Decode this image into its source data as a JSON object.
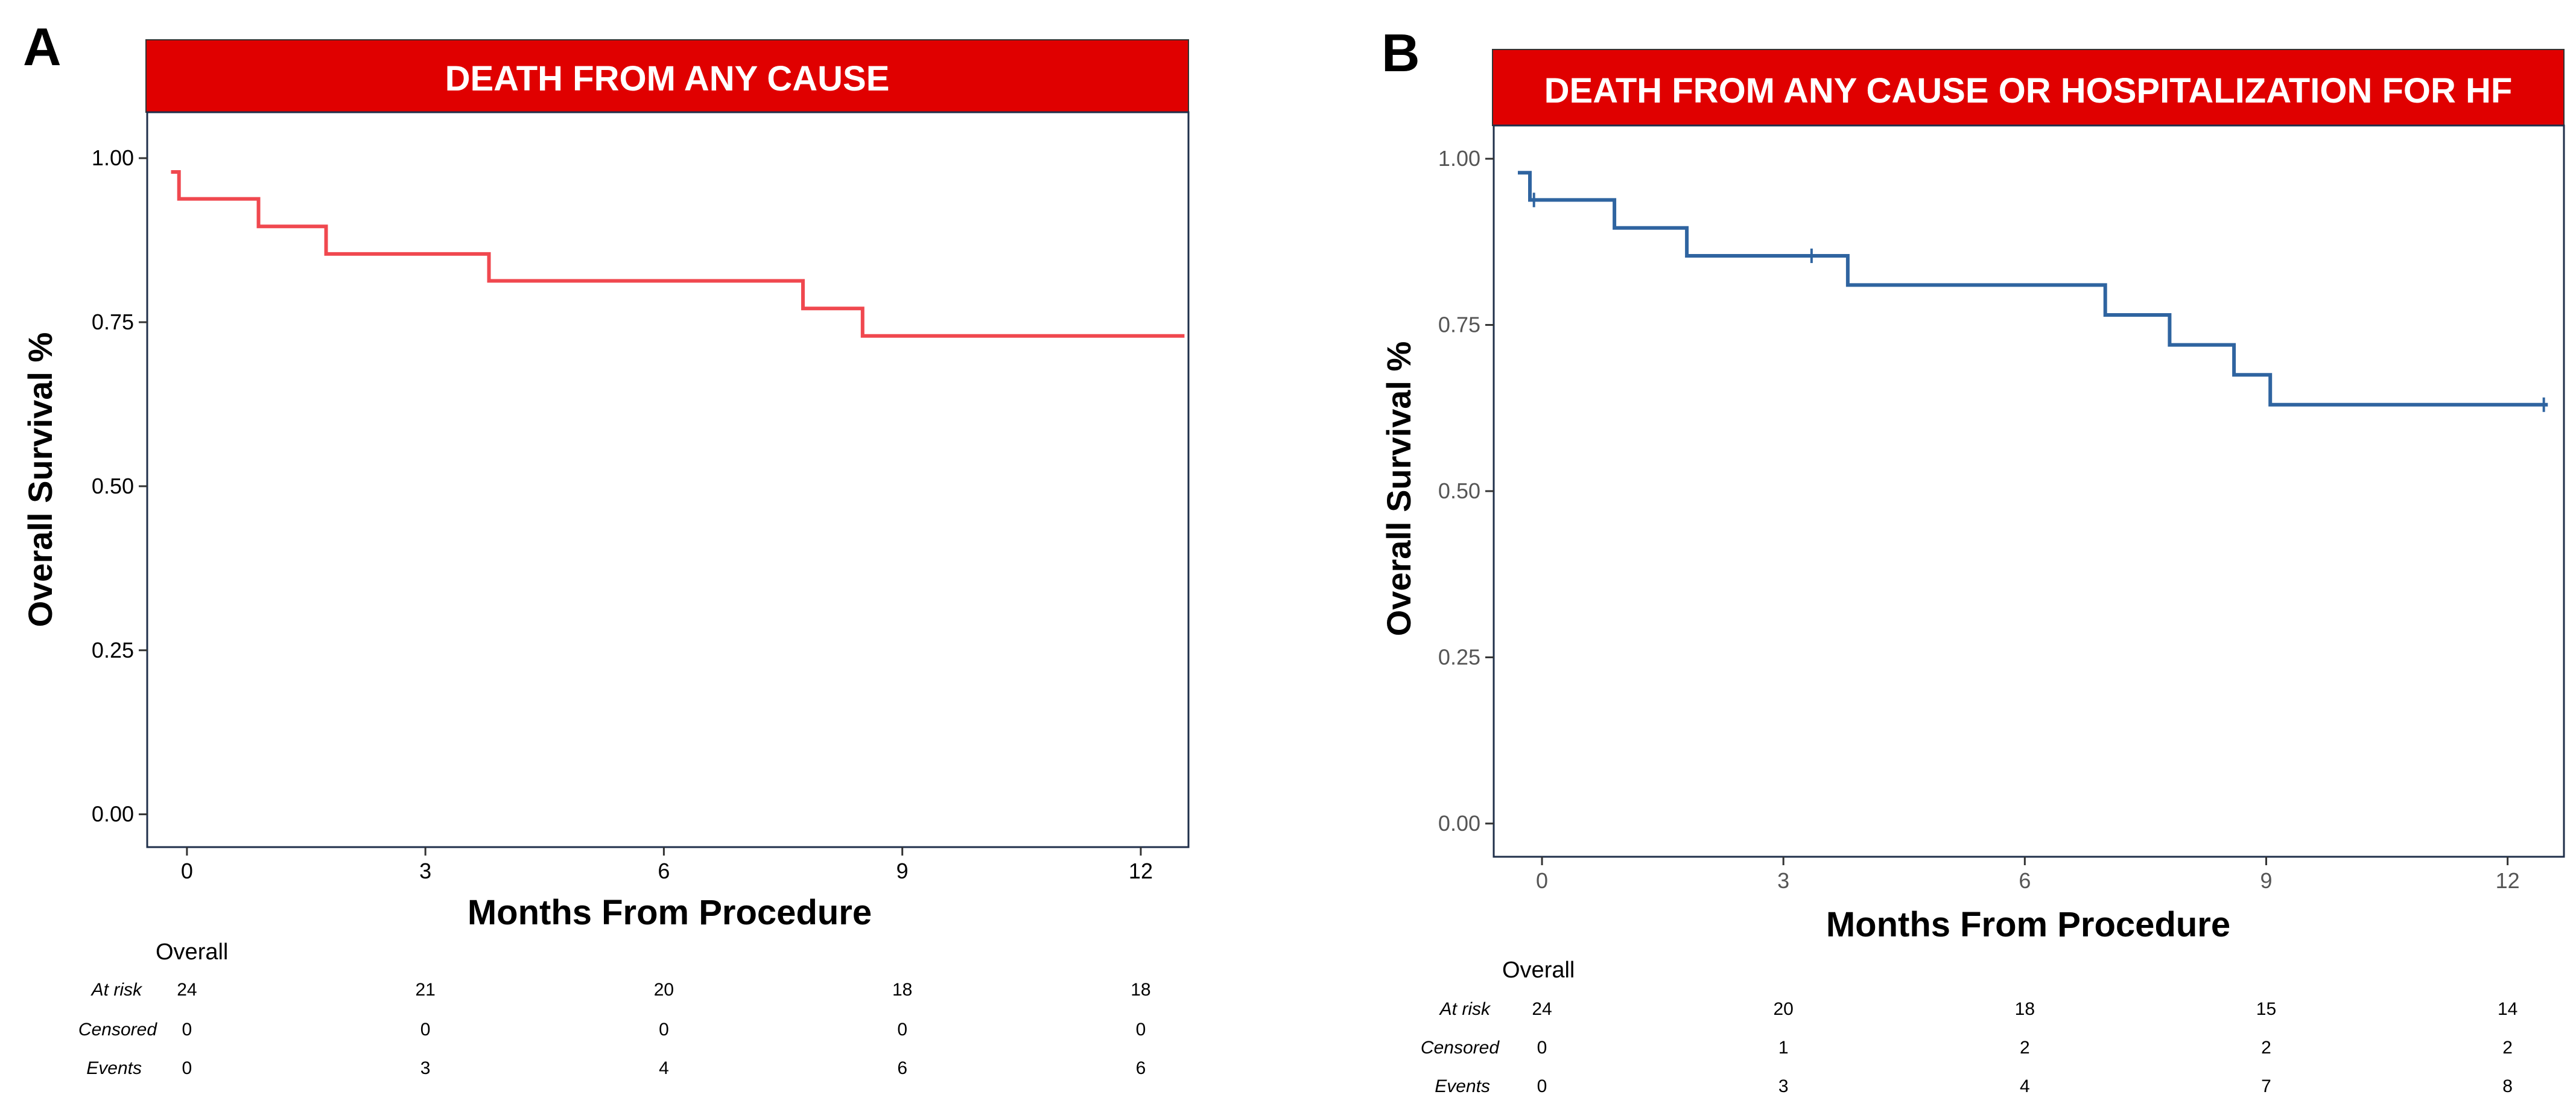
{
  "chart_data": [
    {
      "type": "line",
      "panel_letter": "A",
      "title": "DEATH FROM ANY CAUSE",
      "xlabel": "Months From Procedure",
      "ylabel": "Overall Survival %",
      "xlim": [
        -0.5,
        12.6
      ],
      "ylim": [
        -0.05,
        1.07
      ],
      "x_ticks": [
        0,
        3,
        6,
        9,
        12
      ],
      "y_ticks": [
        0.0,
        0.25,
        0.5,
        0.75,
        1.0
      ],
      "y_tick_labels": [
        "0.00",
        "0.25",
        "0.50",
        "0.75",
        "1.00"
      ],
      "series": [
        {
          "name": "Overall",
          "color": "#f0484f",
          "step_points": [
            [
              -0.2,
              0.979
            ],
            [
              -0.1,
              0.979
            ],
            [
              -0.1,
              0.938
            ],
            [
              0.9,
              0.938
            ],
            [
              0.9,
              0.896
            ],
            [
              1.75,
              0.896
            ],
            [
              1.75,
              0.854
            ],
            [
              3.8,
              0.854
            ],
            [
              3.8,
              0.813
            ],
            [
              7.75,
              0.813
            ],
            [
              7.75,
              0.771
            ],
            [
              8.5,
              0.771
            ],
            [
              8.5,
              0.729
            ],
            [
              12.55,
              0.729
            ]
          ],
          "censor_marks": []
        }
      ],
      "risk_table": {
        "group": "Overall",
        "rows": [
          {
            "label": "At risk",
            "values": [
              "24",
              "21",
              "20",
              "18",
              "18"
            ]
          },
          {
            "label": "Censored",
            "values": [
              "0",
              "0",
              "0",
              "0",
              "0"
            ]
          },
          {
            "label": "Events",
            "values": [
              "0",
              "3",
              "4",
              "6",
              "6"
            ]
          }
        ]
      }
    },
    {
      "type": "line",
      "panel_letter": "B",
      "title": "DEATH FROM ANY CAUSE OR HOSPITALIZATION FOR HF",
      "xlabel": "Months From Procedure",
      "ylabel": "Overall Survival %",
      "xlim": [
        -0.6,
        12.7
      ],
      "ylim": [
        -0.05,
        1.05
      ],
      "x_ticks": [
        0,
        3,
        6,
        9,
        12
      ],
      "y_ticks": [
        0.0,
        0.25,
        0.5,
        0.75,
        1.0
      ],
      "y_tick_labels": [
        "0.00",
        "0.25",
        "0.50",
        "0.75",
        "1.00"
      ],
      "series": [
        {
          "name": "Overall",
          "color": "#2f64a0",
          "step_points": [
            [
              -0.3,
              0.979
            ],
            [
              -0.15,
              0.979
            ],
            [
              -0.15,
              0.938
            ],
            [
              0.9,
              0.938
            ],
            [
              0.9,
              0.896
            ],
            [
              1.8,
              0.896
            ],
            [
              1.8,
              0.854
            ],
            [
              3.8,
              0.854
            ],
            [
              3.8,
              0.81
            ],
            [
              7.0,
              0.81
            ],
            [
              7.0,
              0.765
            ],
            [
              7.8,
              0.765
            ],
            [
              7.8,
              0.72
            ],
            [
              8.6,
              0.72
            ],
            [
              8.6,
              0.675
            ],
            [
              9.05,
              0.675
            ],
            [
              9.05,
              0.63
            ],
            [
              12.5,
              0.63
            ]
          ],
          "censor_marks": [
            [
              -0.1,
              0.938
            ],
            [
              3.35,
              0.854
            ],
            [
              12.45,
              0.63
            ]
          ]
        }
      ],
      "risk_table": {
        "group": "Overall",
        "rows": [
          {
            "label": "At risk",
            "values": [
              "24",
              "20",
              "18",
              "15",
              "14"
            ]
          },
          {
            "label": "Censored",
            "values": [
              "0",
              "1",
              "2",
              "2",
              "2"
            ]
          },
          {
            "label": "Events",
            "values": [
              "0",
              "3",
              "4",
              "7",
              "8"
            ]
          }
        ]
      }
    }
  ]
}
